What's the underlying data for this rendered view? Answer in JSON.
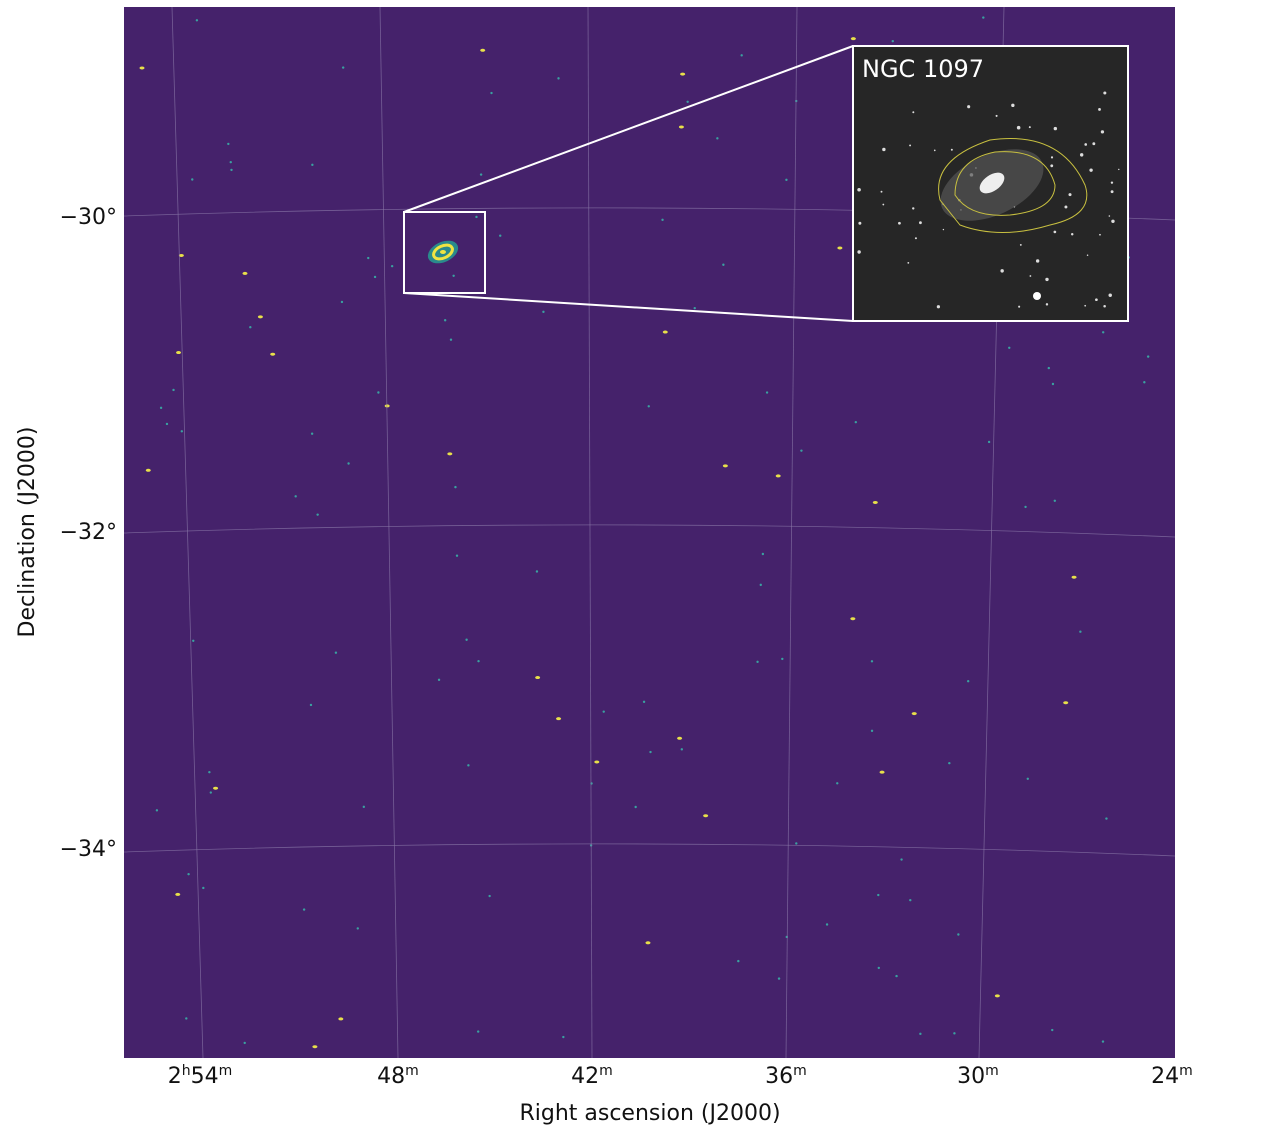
{
  "figure": {
    "x_axis": {
      "label": "Right ascension (J2000)",
      "ticks": [
        [
          {
            "text": "2"
          },
          {
            "text": "h",
            "sup": true
          },
          {
            "text": "54"
          },
          {
            "text": "m",
            "sup": true
          }
        ],
        [
          {
            "text": "48"
          },
          {
            "text": "m",
            "sup": true
          }
        ],
        [
          {
            "text": "42"
          },
          {
            "text": "m",
            "sup": true
          }
        ],
        [
          {
            "text": "36"
          },
          {
            "text": "m",
            "sup": true
          }
        ],
        [
          {
            "text": "30"
          },
          {
            "text": "m",
            "sup": true
          }
        ],
        [
          {
            "text": "24"
          },
          {
            "text": "m",
            "sup": true
          }
        ]
      ]
    },
    "y_axis": {
      "label": "Declination (J2000)",
      "ticks": [
        "−30°",
        "−32°",
        "−34°"
      ]
    },
    "inset": {
      "label": "NGC 1097"
    }
  }
}
